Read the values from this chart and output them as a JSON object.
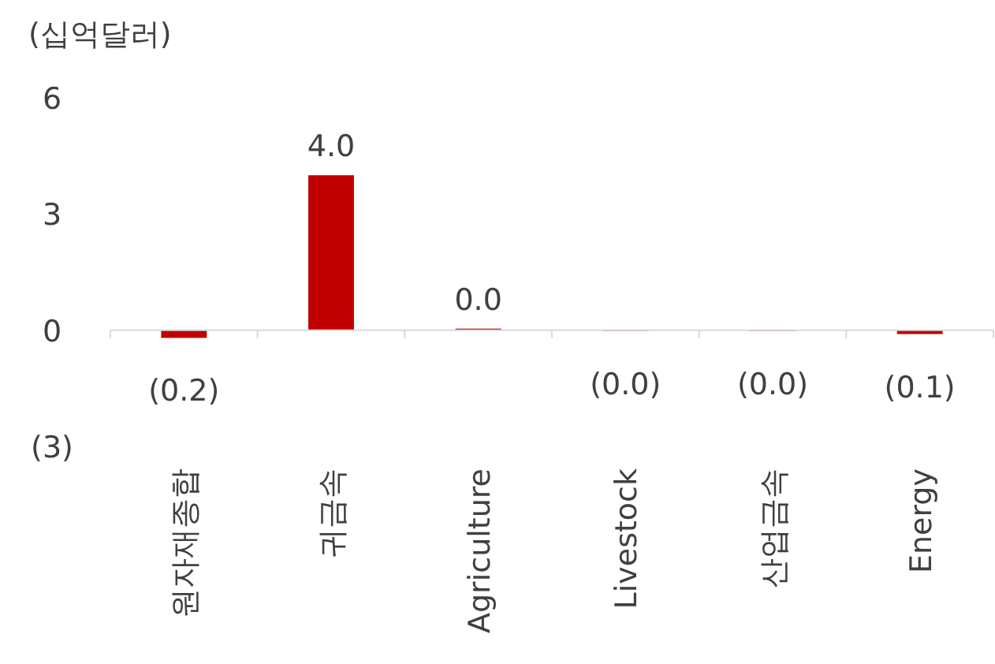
{
  "chart_data": {
    "type": "bar",
    "ylabel": "(십억달러)",
    "categories": [
      "원자재종합",
      "귀금속",
      "Agriculture",
      "Livestock",
      "산업금속",
      "Energy"
    ],
    "values": [
      -0.2,
      4.0,
      0.04,
      -0.02,
      -0.02,
      -0.1
    ],
    "value_labels": [
      "(0.2)",
      "4.0",
      "0.0",
      "(0.0)",
      "(0.0)",
      "(0.1)"
    ],
    "color": "#c00000",
    "ylim": [
      -3,
      6
    ],
    "yticks": [
      {
        "value": 6,
        "label": "6"
      },
      {
        "value": 3,
        "label": "3"
      },
      {
        "value": 0,
        "label": "0"
      },
      {
        "value": -3,
        "label": "(3)"
      }
    ]
  }
}
